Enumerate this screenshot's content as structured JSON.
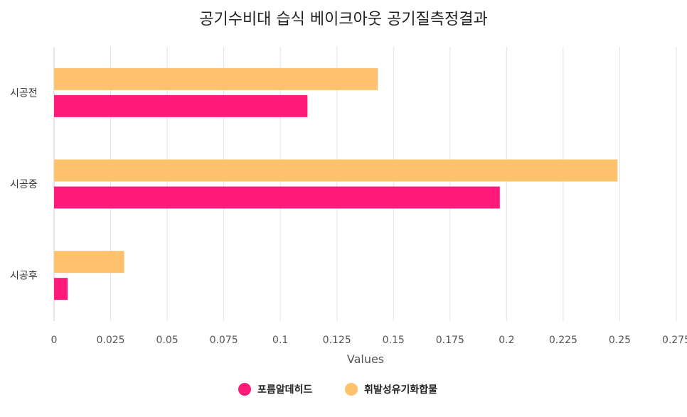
{
  "chart_data": {
    "type": "bar",
    "orientation": "horizontal",
    "title": "공기수비대 습식 베이크아웃 공기질측정결과",
    "xlabel": "Values",
    "ylabel": "",
    "categories": [
      "시공전",
      "시공중",
      "시공후"
    ],
    "xlim": [
      0,
      0.275
    ],
    "xticks": [
      "0",
      "0.025",
      "0.05",
      "0.075",
      "0.1",
      "0.125",
      "0.15",
      "0.175",
      "0.2",
      "0.225",
      "0.25",
      "0.275"
    ],
    "grid": true,
    "legend_position": "bottom",
    "series": [
      {
        "name": "포름알데히드",
        "color": "#ff1a7c",
        "values": [
          0.112,
          0.197,
          0.006
        ]
      },
      {
        "name": "휘발성유기화합물",
        "color": "#fdc26b",
        "values": [
          0.143,
          0.249,
          0.031
        ]
      }
    ]
  }
}
